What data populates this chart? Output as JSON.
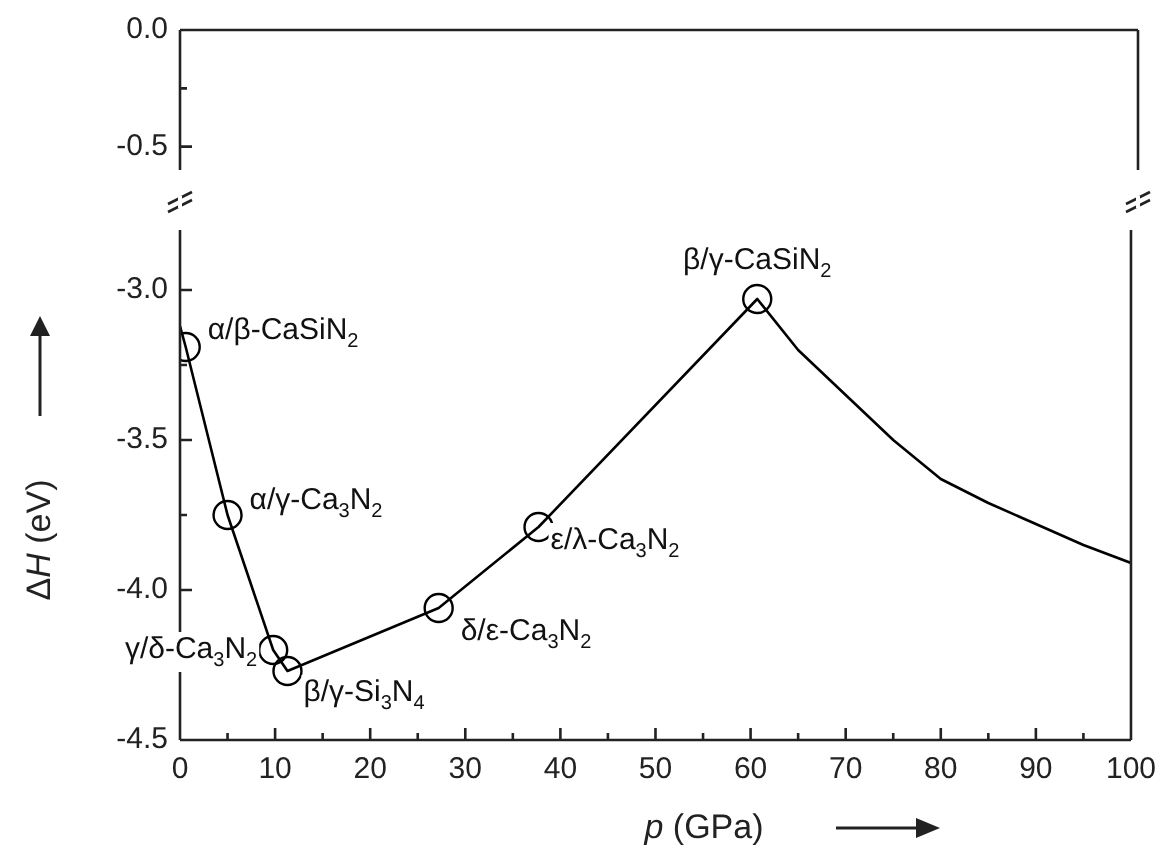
{
  "chart_data": [
    {
      "type": "line",
      "xlim": [
        0,
        100
      ],
      "ylim": [
        -0.6,
        0.0
      ],
      "yticks": [
        {
          "value": 0,
          "label": "0.0"
        },
        {
          "value": -0.25,
          "label": null
        },
        {
          "value": -0.5,
          "label": "-0.5"
        }
      ],
      "tick_labels": "y"
    },
    {
      "type": "line",
      "xlabel": "p (GPa)",
      "ylabel": "ΔH (eV)",
      "xlim": [
        0,
        100
      ],
      "xticks": [
        0,
        {
          "value": 5,
          "label": null
        },
        10,
        {
          "value": 15,
          "label": null
        },
        20,
        {
          "value": 25,
          "label": null
        },
        30,
        {
          "value": 35,
          "label": null
        },
        40,
        {
          "value": 45,
          "label": null
        },
        50,
        {
          "value": 55,
          "label": null
        },
        60,
        {
          "value": 65,
          "label": null
        },
        70,
        {
          "value": 75,
          "label": null
        },
        80,
        {
          "value": 85,
          "label": null
        },
        90,
        {
          "value": 95,
          "label": null
        },
        100
      ],
      "ylim": [
        -4.5,
        -2.8
      ],
      "yticks": [
        {
          "value": -4.5,
          "label": "-4.5"
        },
        {
          "value": -4.25,
          "label": null
        },
        {
          "value": -4,
          "label": "-4.0"
        },
        {
          "value": -3.75,
          "label": null
        },
        {
          "value": -3.5,
          "label": "-3.5"
        },
        {
          "value": -3.25,
          "label": null
        },
        {
          "value": -3,
          "label": "-3.0"
        }
      ],
      "series": [
        {
          "type": "line",
          "color": "#000000",
          "marker": "none",
          "x": [
            0,
            0.6,
            5,
            9.8,
            11.3,
            27.2,
            37.7,
            60.7,
            65,
            70,
            75,
            80,
            85,
            90,
            95,
            100
          ],
          "values": [
            -3.12,
            -3.19,
            -3.75,
            -4.2,
            -4.27,
            -4.06,
            -3.79,
            -3.03,
            -3.2,
            -3.35,
            -3.5,
            -3.63,
            -3.71,
            -3.78,
            -3.85,
            -3.91
          ]
        },
        {
          "type": "scatter",
          "color": "#000000",
          "marker": "circle",
          "x": [
            0.6,
            5,
            9.8,
            11.3,
            27.2,
            37.7,
            60.7
          ],
          "values": [
            -3.19,
            -3.75,
            -4.2,
            -4.27,
            -4.06,
            -3.79,
            -3.03
          ]
        }
      ],
      "annotations": [
        {
          "text": "α/β-CaSiN$_{2}$",
          "x": 0.6,
          "y": -3.19
        },
        {
          "text": "α/γ-Ca$_{3}$N$_{2}$",
          "x": 5,
          "y": -3.75
        },
        {
          "text": "γ/δ-Ca$_{3}$N$_{2}$",
          "x": 9.8,
          "y": -4.2
        },
        {
          "text": "β/γ-Si$_{3}$N$_{4}$",
          "x": 11.3,
          "y": -4.27
        },
        {
          "text": "δ/ε-Ca$_{3}$N$_{2}$",
          "x": 27.2,
          "y": -4.06
        },
        {
          "text": "ε/λ-Ca$_{3}$N$_{2}$",
          "x": 37.7,
          "y": -3.79
        },
        {
          "text": "β/γ-CaSiN$_{2}$",
          "x": 60.7,
          "y": -3.03
        }
      ]
    }
  ]
}
